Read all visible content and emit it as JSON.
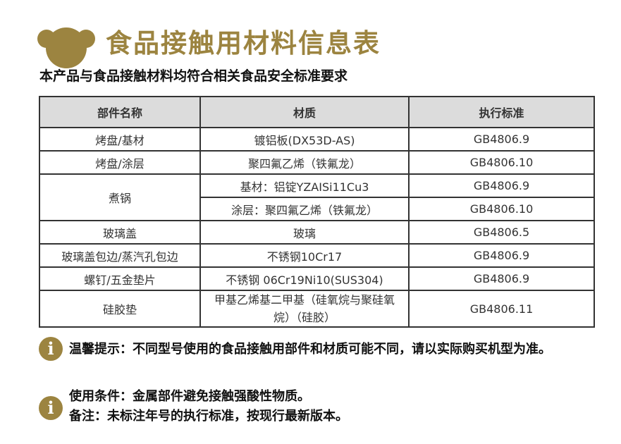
{
  "header": {
    "title": "食品接触用材料信息表",
    "subtitle": "本产品与食品接触材料均符合相关食品安全标准要求",
    "accent": "#9c8440",
    "logo": "bear-head-logo"
  },
  "table": {
    "columns": [
      "部件名称",
      "材质",
      "执行标准"
    ],
    "rows": [
      {
        "part": "烤盘/基材",
        "material": "镀铝板(DX53D-AS)",
        "standard": "GB4806.9"
      },
      {
        "part": "烤盘/涂层",
        "material": "聚四氟乙烯（铁氟龙）",
        "standard": "GB4806.10"
      },
      {
        "part": "煮锅",
        "material": "基材：铝锭YZAISi11Cu3",
        "standard": "GB4806.9"
      },
      {
        "part": "",
        "material": "涂层：聚四氟乙烯（铁氟龙）",
        "standard": "GB4806.10"
      },
      {
        "part": "玻璃盖",
        "material": "玻璃",
        "standard": "GB4806.5"
      },
      {
        "part": "玻璃盖包边/蒸汽孔包边",
        "material": "不锈钢10Cr17",
        "standard": "GB4806.9"
      },
      {
        "part": "螺钉/五金垫片",
        "material": "不锈钢 06Cr19Ni10(SUS304)",
        "standard": "GB4806.9"
      },
      {
        "part": "硅胶垫",
        "material": "甲基乙烯基二甲基（硅氧烷与聚硅氧烷）（硅胶）",
        "standard": "GB4806.11"
      }
    ]
  },
  "notes": {
    "tip": "温馨提示：不同型号使用的食品接触用部件和材质可能不同，请以实际购买机型为准。",
    "condition": "使用条件：金属部件避免接触强酸性物质。",
    "remark": "备注：未标注年号的执行标准，按现行最新版本。",
    "icon": "info-icon"
  }
}
